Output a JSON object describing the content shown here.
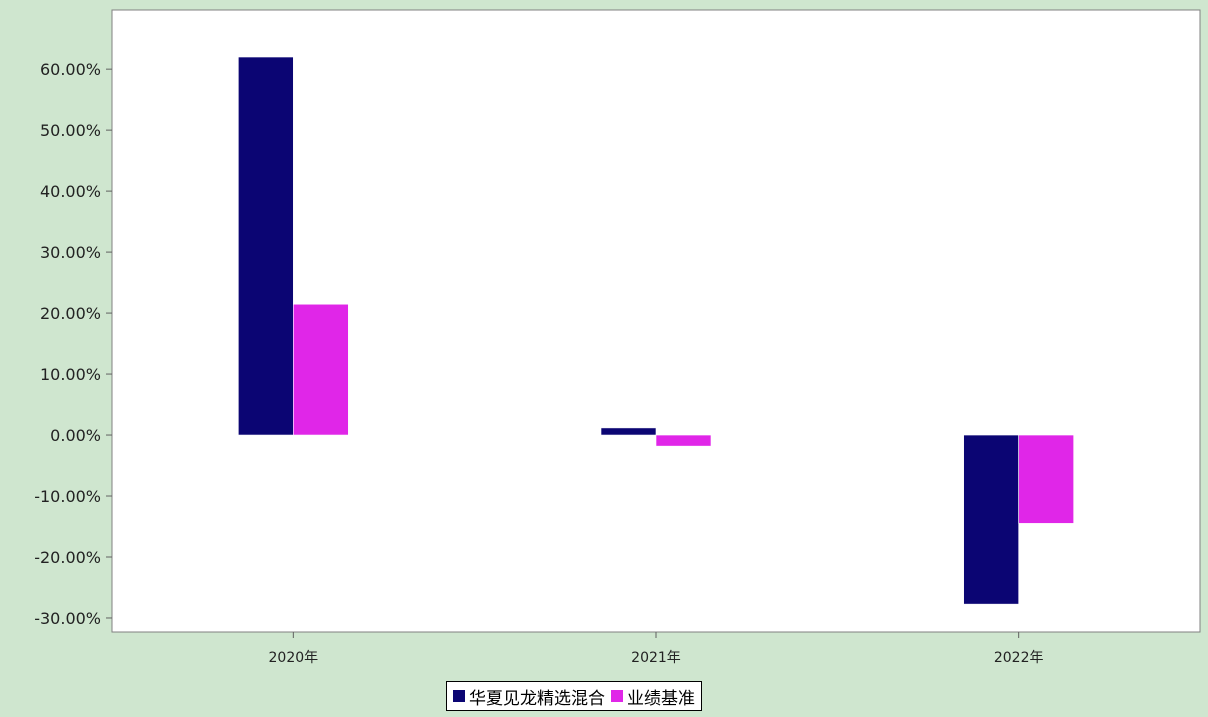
{
  "chart_data": {
    "type": "bar",
    "categories": [
      "2020年",
      "2021年",
      "2022年"
    ],
    "series": [
      {
        "name": "华夏见龙精选混合",
        "color": "#0b0573",
        "values": [
          61.99,
          1.17,
          -27.73
        ]
      },
      {
        "name": "业绩基准",
        "color": "#e026e8",
        "values": [
          21.45,
          -1.82,
          -14.49
        ]
      }
    ],
    "y_ticks": [
      "60.00%",
      "50.00%",
      "40.00%",
      "30.00%",
      "20.00%",
      "10.00%",
      "0.00%",
      "-10.00%",
      "-20.00%",
      "-30.00%"
    ],
    "y_tick_values": [
      60,
      50,
      40,
      30,
      20,
      10,
      0,
      -10,
      -20,
      -30
    ],
    "ylim": [
      -32.3,
      69.7
    ],
    "grid": false,
    "legend_position": "bottom-center",
    "plot_background": "#ffffff",
    "page_background": "#cfe6cf"
  }
}
